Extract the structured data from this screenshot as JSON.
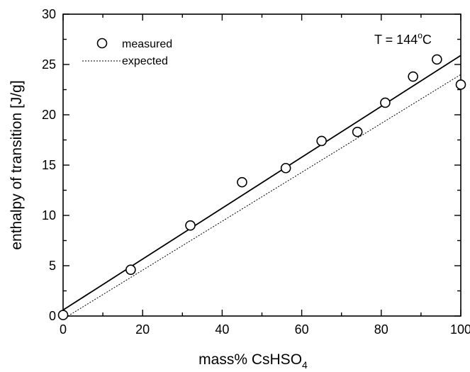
{
  "chart_data": {
    "type": "scatter",
    "xlabel": "mass% CsHSO",
    "xlabel_subscript": "4",
    "ylabel": "enthalpy of transition [J/g]",
    "xlim": [
      0,
      100
    ],
    "ylim": [
      0,
      30
    ],
    "x_ticks": [
      0,
      20,
      40,
      60,
      80,
      100
    ],
    "y_ticks": [
      0,
      5,
      10,
      15,
      20,
      25,
      30
    ],
    "grid": false,
    "legend_position": "top-left",
    "annotation": {
      "prefix": "T = 144",
      "superscript": "o",
      "suffix": "C"
    },
    "series": [
      {
        "name": "measured",
        "kind": "markers",
        "marker": "open-circle",
        "x": [
          0,
          17,
          32,
          45,
          56,
          65,
          74,
          81,
          88,
          94,
          100
        ],
        "y": [
          0.1,
          4.6,
          9.0,
          13.3,
          14.7,
          17.4,
          18.3,
          21.2,
          23.8,
          25.5,
          23.0
        ]
      },
      {
        "name": "measured fit",
        "kind": "line",
        "style": "solid",
        "x": [
          0,
          100
        ],
        "y": [
          0.6,
          25.9
        ]
      },
      {
        "name": "expected",
        "kind": "line",
        "style": "dotted",
        "x": [
          0,
          100
        ],
        "y": [
          -0.3,
          24.0
        ]
      }
    ]
  }
}
